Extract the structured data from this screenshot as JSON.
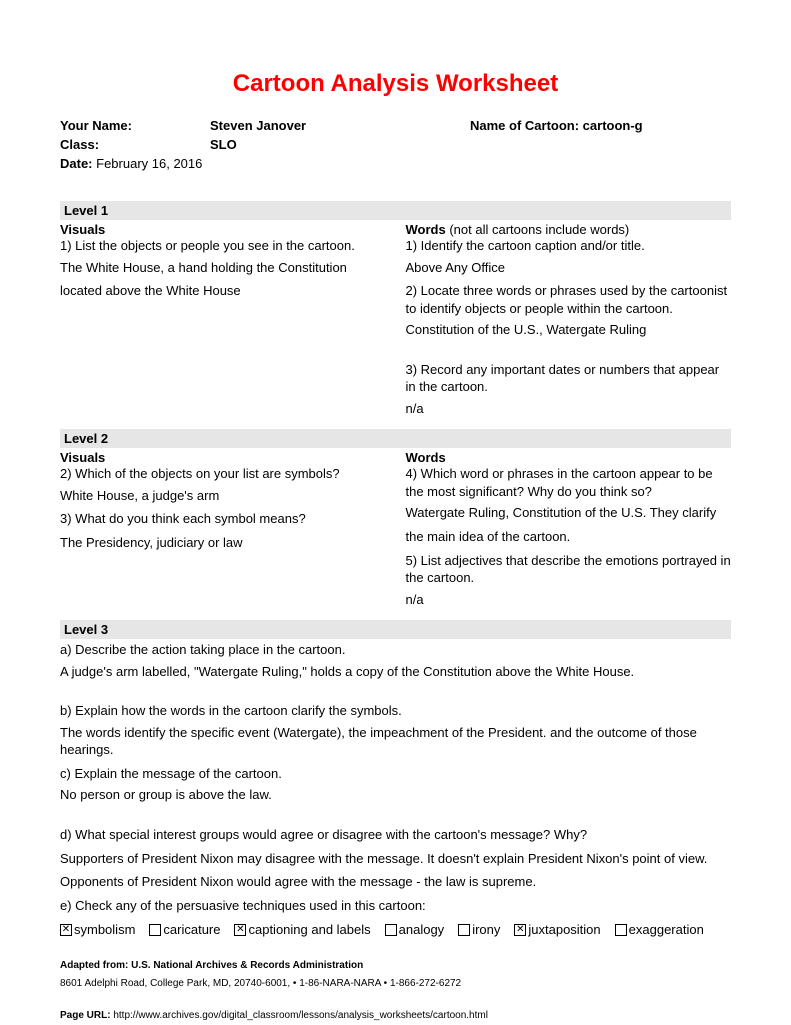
{
  "title": "Cartoon Analysis Worksheet",
  "header": {
    "your_name_label": "Your Name:",
    "your_name_value": "Steven Janover",
    "cartoon_label": "Name of Cartoon: ",
    "cartoon_value": "cartoon-g",
    "class_label": "Class:",
    "class_value": "SLO",
    "date_label": "Date: ",
    "date_value": "February 16, 2016"
  },
  "level1": {
    "header": "Level 1",
    "visuals_header": "Visuals",
    "v_q1": "1) List the objects or people you see in the cartoon.",
    "v_a1a": "The White House, a hand holding the Constitution",
    "v_a1b": "located above the White House",
    "words_header": "Words",
    "words_note": " (not all cartoons include words)",
    "w_q1": "1) Identify the cartoon caption and/or title.",
    "w_a1": "Above Any Office",
    "w_q2": "2) Locate three words or phrases used by the cartoonist to identify objects or people within the cartoon.",
    "w_a2": "Constitution of the U.S., Watergate Ruling",
    "w_q3": "3) Record any important dates or numbers that appear in the cartoon.",
    "w_a3": "n/a"
  },
  "level2": {
    "header": "Level 2",
    "visuals_header": "Visuals",
    "v_q2": "2) Which of the objects on your list are symbols?",
    "v_a2": "White House, a judge's arm",
    "v_q3": "3) What do you think each symbol means?",
    "v_a3": "The Presidency, judiciary or law",
    "words_header": "Words",
    "w_q4": "4) Which word or phrases in the cartoon appear to be the most significant?  Why do you think so?",
    "w_a4a": "Watergate Ruling, Constitution of the U.S. They clarify",
    "w_a4b": "the main idea of the cartoon.",
    "w_q5": "5) List adjectives that describe the emotions portrayed in the cartoon.",
    "w_a5": "n/a"
  },
  "level3": {
    "header": "Level 3",
    "qa_a": "a) Describe the action taking place in the cartoon.",
    "an_a": "A judge's arm labelled, \"Watergate Ruling,\" holds a copy of the Constitution above the White House.",
    "qa_b": "b) Explain how the words in the cartoon clarify the symbols.",
    "an_b": "The words identify the specific event (Watergate), the impeachment of the President. and the outcome of those hearings.",
    "qa_c": "c) Explain how the message of the cartoon.",
    "an_c_q": "c) Explain the message of the cartoon.",
    "an_c": "No person or group is above the law.",
    "qa_d": "d) What special interest groups would agree or disagree with the cartoon's message?  Why?",
    "an_d1": "Supporters of President Nixon may disagree with the message. It doesn't explain President Nixon's point of view.",
    "an_d2": "Opponents of President Nixon would agree with the message - the law is supreme.",
    "qa_e": "e) Check any of the persuasive techniques used in this cartoon:"
  },
  "checkboxes": [
    {
      "label": "symbolism",
      "checked": true
    },
    {
      "label": "caricature",
      "checked": false
    },
    {
      "label": "captioning and labels",
      "checked": true
    },
    {
      "label": "analogy",
      "checked": false
    },
    {
      "label": "irony",
      "checked": false
    },
    {
      "label": "juxtaposition",
      "checked": true
    },
    {
      "label": "exaggeration",
      "checked": false
    }
  ],
  "footer": {
    "line1": "Adapted from: U.S. National Archives & Records Administration",
    "line2": "8601 Adelphi Road, College Park, MD, 20740-6001, • 1-86-NARA-NARA • 1-866-272-6272",
    "page_url_label": "Page URL: ",
    "page_url": "http://www.archives.gov/digital_classroom/lessons/analysis_worksheets/cartoon.html"
  }
}
